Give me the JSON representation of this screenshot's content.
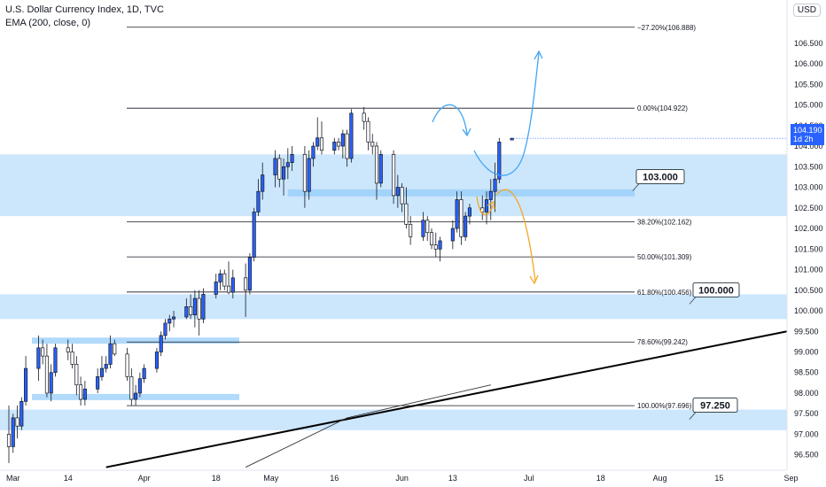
{
  "header": {
    "title": "U.S. Dollar Currency Index, 1D, TVC",
    "indicator": "EMA (200, close, 0)"
  },
  "currency_button": "USD",
  "price_tag": {
    "price": "104.190",
    "countdown": "1d 2h"
  },
  "colors": {
    "up": "#2962ff",
    "down": "#ffffff",
    "zone": "#bbdefb",
    "arrow_blue": "#42a5f5",
    "arrow_orange": "#f5a623"
  },
  "chart_data": {
    "type": "candlestick",
    "title": "U.S. Dollar Currency Index, 1D, TVC",
    "indicator": "EMA (200, close, 0)",
    "ylim": [
      96.15,
      107.55
    ],
    "y_ticks": [
      "106.500",
      "106.000",
      "105.500",
      "105.000",
      "104.500",
      "104.000",
      "103.500",
      "103.000",
      "102.500",
      "102.000",
      "101.500",
      "101.000",
      "100.500",
      "100.000",
      "99.500",
      "99.000",
      "98.500",
      "98.000",
      "97.500",
      "97.000",
      "96.500"
    ],
    "x_ticks": [
      "Mar",
      "14",
      "Apr",
      "18",
      "May",
      "16",
      "Jun",
      "13",
      "Jul",
      "18",
      "Aug",
      "15",
      "Sep"
    ],
    "candles": [
      {
        "d": "02-28",
        "o": 97.0,
        "h": 97.7,
        "l": 96.3,
        "c": 96.7
      },
      {
        "d": "03-01",
        "o": 96.7,
        "h": 97.5,
        "l": 96.55,
        "c": 97.4
      },
      {
        "d": "03-02",
        "o": 97.4,
        "h": 97.7,
        "l": 96.9,
        "c": 97.2
      },
      {
        "d": "03-03",
        "o": 97.2,
        "h": 97.9,
        "l": 97.1,
        "c": 97.8
      },
      {
        "d": "03-04",
        "o": 97.8,
        "h": 98.9,
        "l": 97.7,
        "c": 98.6
      },
      {
        "d": "03-07",
        "o": 98.6,
        "h": 99.4,
        "l": 98.3,
        "c": 99.1
      },
      {
        "d": "03-08",
        "o": 99.1,
        "h": 99.3,
        "l": 98.7,
        "c": 98.9
      },
      {
        "d": "03-09",
        "o": 98.9,
        "h": 99.2,
        "l": 97.9,
        "c": 98.0
      },
      {
        "d": "03-10",
        "o": 98.0,
        "h": 98.7,
        "l": 97.8,
        "c": 98.5
      },
      {
        "d": "03-11",
        "o": 98.5,
        "h": 99.2,
        "l": 98.4,
        "c": 99.1
      },
      {
        "d": "03-14",
        "o": 99.1,
        "h": 99.3,
        "l": 98.8,
        "c": 99.0
      },
      {
        "d": "03-15",
        "o": 99.0,
        "h": 99.2,
        "l": 98.6,
        "c": 98.7
      },
      {
        "d": "03-16",
        "o": 98.7,
        "h": 98.9,
        "l": 97.95,
        "c": 98.2
      },
      {
        "d": "03-17",
        "o": 98.2,
        "h": 98.4,
        "l": 97.7,
        "c": 97.85
      },
      {
        "d": "03-18",
        "o": 97.85,
        "h": 98.3,
        "l": 97.7,
        "c": 98.1
      },
      {
        "d": "03-21",
        "o": 98.1,
        "h": 98.6,
        "l": 98.0,
        "c": 98.4
      },
      {
        "d": "03-22",
        "o": 98.4,
        "h": 98.9,
        "l": 98.3,
        "c": 98.6
      },
      {
        "d": "03-23",
        "o": 98.6,
        "h": 98.9,
        "l": 98.5,
        "c": 98.7
      },
      {
        "d": "03-24",
        "o": 98.7,
        "h": 99.4,
        "l": 98.6,
        "c": 99.2
      },
      {
        "d": "03-25",
        "o": 99.2,
        "h": 99.3,
        "l": 98.9,
        "c": 98.95
      },
      {
        "d": "03-28",
        "o": 98.95,
        "h": 99.1,
        "l": 98.3,
        "c": 98.4
      },
      {
        "d": "03-29",
        "o": 98.4,
        "h": 98.6,
        "l": 97.7,
        "c": 97.85
      },
      {
        "d": "03-30",
        "o": 97.85,
        "h": 98.2,
        "l": 97.7,
        "c": 98.0
      },
      {
        "d": "03-31",
        "o": 98.0,
        "h": 98.5,
        "l": 97.9,
        "c": 98.35
      },
      {
        "d": "04-01",
        "o": 98.35,
        "h": 98.7,
        "l": 98.25,
        "c": 98.6
      },
      {
        "d": "04-04",
        "o": 98.6,
        "h": 99.1,
        "l": 98.5,
        "c": 99.0
      },
      {
        "d": "04-05",
        "o": 99.0,
        "h": 99.5,
        "l": 98.9,
        "c": 99.4
      },
      {
        "d": "04-06",
        "o": 99.4,
        "h": 99.8,
        "l": 99.3,
        "c": 99.7
      },
      {
        "d": "04-07",
        "o": 99.7,
        "h": 99.9,
        "l": 99.5,
        "c": 99.8
      },
      {
        "d": "04-08",
        "o": 99.8,
        "h": 100.0,
        "l": 99.6,
        "c": 99.85
      },
      {
        "d": "04-11",
        "o": 99.85,
        "h": 100.3,
        "l": 99.8,
        "c": 100.1
      },
      {
        "d": "04-12",
        "o": 100.1,
        "h": 100.4,
        "l": 99.8,
        "c": 99.9
      },
      {
        "d": "04-13",
        "o": 99.9,
        "h": 100.5,
        "l": 99.6,
        "c": 100.3
      },
      {
        "d": "04-14",
        "o": 100.3,
        "h": 100.5,
        "l": 99.4,
        "c": 99.8
      },
      {
        "d": "04-15",
        "o": 99.8,
        "h": 100.55,
        "l": 99.7,
        "c": 100.4
      },
      {
        "d": "04-18",
        "o": 100.4,
        "h": 100.9,
        "l": 100.3,
        "c": 100.7
      },
      {
        "d": "04-19",
        "o": 100.7,
        "h": 101.0,
        "l": 100.5,
        "c": 100.9
      },
      {
        "d": "04-20",
        "o": 100.9,
        "h": 101.0,
        "l": 100.5,
        "c": 100.6
      },
      {
        "d": "04-21",
        "o": 100.6,
        "h": 101.2,
        "l": 100.4,
        "c": 100.45
      },
      {
        "d": "04-22",
        "o": 100.45,
        "h": 101.0,
        "l": 100.3,
        "c": 100.8
      },
      {
        "d": "04-25",
        "o": 100.8,
        "h": 101.15,
        "l": 99.85,
        "c": 100.5
      },
      {
        "d": "04-26",
        "o": 100.5,
        "h": 101.4,
        "l": 100.4,
        "c": 101.3
      },
      {
        "d": "04-27",
        "o": 101.3,
        "h": 102.5,
        "l": 101.2,
        "c": 102.4
      },
      {
        "d": "04-28",
        "o": 102.4,
        "h": 103.2,
        "l": 102.3,
        "c": 102.9
      },
      {
        "d": "04-29",
        "o": 102.9,
        "h": 103.6,
        "l": 102.7,
        "c": 103.3
      },
      {
        "d": "05-02",
        "o": 103.3,
        "h": 103.9,
        "l": 103.0,
        "c": 103.7
      },
      {
        "d": "05-03",
        "o": 103.7,
        "h": 103.8,
        "l": 103.0,
        "c": 103.2
      },
      {
        "d": "05-04",
        "o": 103.2,
        "h": 103.7,
        "l": 102.8,
        "c": 103.5
      },
      {
        "d": "05-05",
        "o": 103.5,
        "h": 103.95,
        "l": 103.2,
        "c": 103.6
      },
      {
        "d": "05-06",
        "o": 103.6,
        "h": 104.0,
        "l": 103.4,
        "c": 103.8
      },
      {
        "d": "05-09",
        "o": 103.8,
        "h": 104.0,
        "l": 102.5,
        "c": 102.9
      },
      {
        "d": "05-10",
        "o": 102.9,
        "h": 103.9,
        "l": 102.7,
        "c": 103.7
      },
      {
        "d": "05-11",
        "o": 103.7,
        "h": 104.1,
        "l": 103.5,
        "c": 104.0
      },
      {
        "d": "05-12",
        "o": 104.0,
        "h": 104.7,
        "l": 103.9,
        "c": 104.2
      },
      {
        "d": "05-13",
        "o": 104.2,
        "h": 104.6,
        "l": 103.8,
        "c": 103.9
      },
      {
        "d": "05-16",
        "o": 103.9,
        "h": 104.2,
        "l": 103.8,
        "c": 104.1
      },
      {
        "d": "05-17",
        "o": 104.1,
        "h": 104.2,
        "l": 103.9,
        "c": 104.0
      },
      {
        "d": "05-18",
        "o": 104.0,
        "h": 104.4,
        "l": 103.7,
        "c": 104.3
      },
      {
        "d": "05-19",
        "o": 104.3,
        "h": 104.4,
        "l": 103.5,
        "c": 103.7
      },
      {
        "d": "05-20",
        "o": 103.7,
        "h": 104.9,
        "l": 103.6,
        "c": 104.8
      },
      {
        "d": "05-23",
        "o": 104.8,
        "h": 104.95,
        "l": 104.4,
        "c": 104.6
      },
      {
        "d": "05-24",
        "o": 104.6,
        "h": 104.7,
        "l": 103.9,
        "c": 104.1
      },
      {
        "d": "05-25",
        "o": 104.1,
        "h": 104.3,
        "l": 103.8,
        "c": 104.0
      },
      {
        "d": "05-26",
        "o": 104.0,
        "h": 104.1,
        "l": 102.7,
        "c": 103.1
      },
      {
        "d": "05-27",
        "o": 103.1,
        "h": 103.9,
        "l": 103.0,
        "c": 103.8
      },
      {
        "d": "05-30",
        "o": 103.8,
        "h": 103.9,
        "l": 102.6,
        "c": 102.8
      },
      {
        "d": "05-31",
        "o": 102.8,
        "h": 103.3,
        "l": 102.5,
        "c": 103.0
      },
      {
        "d": "06-01",
        "o": 103.0,
        "h": 103.1,
        "l": 102.4,
        "c": 102.6
      },
      {
        "d": "06-02",
        "o": 102.6,
        "h": 103.0,
        "l": 102.0,
        "c": 102.1
      },
      {
        "d": "06-03",
        "o": 102.1,
        "h": 102.3,
        "l": 101.6,
        "c": 101.8
      },
      {
        "d": "06-06",
        "o": 101.8,
        "h": 102.4,
        "l": 101.7,
        "c": 102.2
      },
      {
        "d": "06-07",
        "o": 102.2,
        "h": 102.3,
        "l": 101.7,
        "c": 101.9
      },
      {
        "d": "06-08",
        "o": 101.9,
        "h": 102.0,
        "l": 101.5,
        "c": 101.6
      },
      {
        "d": "06-09",
        "o": 101.6,
        "h": 101.9,
        "l": 101.3,
        "c": 101.5
      },
      {
        "d": "06-10",
        "o": 101.5,
        "h": 101.8,
        "l": 101.2,
        "c": 101.7
      },
      {
        "d": "06-13",
        "o": 101.7,
        "h": 102.2,
        "l": 101.5,
        "c": 102.0
      },
      {
        "d": "06-14",
        "o": 102.0,
        "h": 102.9,
        "l": 101.9,
        "c": 102.7
      },
      {
        "d": "06-15",
        "o": 102.7,
        "h": 102.9,
        "l": 101.6,
        "c": 101.8
      },
      {
        "d": "06-16",
        "o": 101.8,
        "h": 102.4,
        "l": 101.7,
        "c": 102.3
      },
      {
        "d": "06-17",
        "o": 102.3,
        "h": 102.6,
        "l": 102.1,
        "c": 102.5
      },
      {
        "d": "06-20",
        "o": 102.5,
        "h": 102.8,
        "l": 102.2,
        "c": 102.4
      },
      {
        "d": "06-21",
        "o": 102.4,
        "h": 102.9,
        "l": 102.1,
        "c": 102.7
      },
      {
        "d": "06-22",
        "o": 102.7,
        "h": 103.2,
        "l": 102.2,
        "c": 102.9
      },
      {
        "d": "06-23",
        "o": 102.9,
        "h": 103.6,
        "l": 102.4,
        "c": 103.2
      },
      {
        "d": "06-24",
        "o": 103.2,
        "h": 104.2,
        "l": 103.1,
        "c": 104.1
      },
      {
        "d": "06-27",
        "o": 104.15,
        "h": 104.2,
        "l": 104.15,
        "c": 104.19
      }
    ],
    "fib_levels": [
      {
        "label": "−27.20%(106.888)",
        "value": 106.888
      },
      {
        "label": "0.00%(104.922)",
        "value": 104.922
      },
      {
        "label": "38.20%(102.162)",
        "value": 102.162
      },
      {
        "label": "50.00%(101.309)",
        "value": 101.309
      },
      {
        "label": "61.80%(100.456)",
        "value": 100.456
      },
      {
        "label": "78.60%(99.242)",
        "value": 99.242
      },
      {
        "label": "100.00%(97.696)",
        "value": 97.696
      }
    ],
    "zones": [
      {
        "from": 102.3,
        "to": 103.8
      },
      {
        "from": 99.8,
        "to": 100.4
      },
      {
        "from": 97.1,
        "to": 97.6
      }
    ],
    "level_labels": [
      "103.000",
      "100.000",
      "97.250"
    ],
    "trendline": {
      "start_date": "03-23",
      "start_value": 96.2,
      "end_value": 99.5
    },
    "ema": [
      {
        "d": "04-25",
        "v": 96.2
      },
      {
        "d": "05-19",
        "v": 97.4
      },
      {
        "d": "06-22",
        "v": 98.2
      }
    ],
    "current_price": 104.19
  }
}
